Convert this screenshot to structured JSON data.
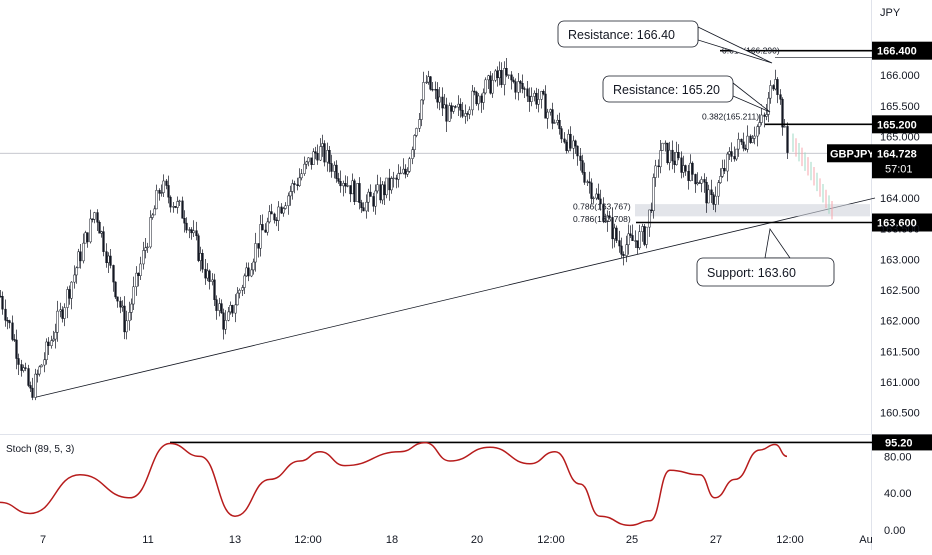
{
  "chart_data": [
    {
      "type": "candlestick",
      "symbol": "GBPJPY",
      "currency": "JPY",
      "last_price": "164.728",
      "countdown": "57:01",
      "y_ticks": [
        "166.000",
        "165.500",
        "165.000",
        "164.000",
        "163.500",
        "163.000",
        "162.500",
        "162.000",
        "161.500",
        "161.000",
        "160.500"
      ],
      "y_range": [
        160.3,
        166.9
      ],
      "x_ticks": [
        "7",
        "11",
        "13",
        "12:00",
        "18",
        "20",
        "12:00",
        "25",
        "27",
        "12:00",
        "Au"
      ],
      "approx_close_path": [
        {
          "x": 0,
          "close": 162.4
        },
        {
          "x": 30,
          "close": 160.8
        },
        {
          "x": 60,
          "close": 162.1
        },
        {
          "x": 95,
          "close": 163.8
        },
        {
          "x": 125,
          "close": 161.9
        },
        {
          "x": 160,
          "close": 164.2
        },
        {
          "x": 185,
          "close": 163.7
        },
        {
          "x": 225,
          "close": 161.9
        },
        {
          "x": 260,
          "close": 163.4
        },
        {
          "x": 318,
          "close": 164.8
        },
        {
          "x": 365,
          "close": 163.9
        },
        {
          "x": 405,
          "close": 164.4
        },
        {
          "x": 425,
          "close": 165.9
        },
        {
          "x": 450,
          "close": 165.3
        },
        {
          "x": 500,
          "close": 166.0
        },
        {
          "x": 540,
          "close": 165.6
        },
        {
          "x": 575,
          "close": 164.7
        },
        {
          "x": 620,
          "close": 163.2
        },
        {
          "x": 645,
          "close": 163.4
        },
        {
          "x": 660,
          "close": 164.8
        },
        {
          "x": 700,
          "close": 164.3
        },
        {
          "x": 710,
          "close": 163.9
        },
        {
          "x": 730,
          "close": 164.7
        },
        {
          "x": 765,
          "close": 165.3
        },
        {
          "x": 775,
          "close": 166.1
        },
        {
          "x": 787,
          "close": 164.7
        }
      ],
      "projection": [
        164.9,
        164.4,
        163.8
      ],
      "levels": [
        {
          "label": "166.400",
          "value": 166.4
        },
        {
          "label": "165.200",
          "value": 165.2
        },
        {
          "label": "163.600",
          "value": 163.6
        }
      ],
      "fib_labels": [
        {
          "text": "0.618(166.290)",
          "value": 166.29
        },
        {
          "text": "0.382(165.211)",
          "value": 165.211
        },
        {
          "text": "0.786(163.767)",
          "value": 163.767
        },
        {
          "text": "0.786(163.708)",
          "value": 163.708
        }
      ],
      "trendline": {
        "from": {
          "x": 35,
          "value": 160.75
        },
        "to": {
          "x": 875,
          "value": 164.0
        }
      },
      "support_zone": [
        163.7,
        163.9
      ],
      "callouts": [
        {
          "text": "Resistance: 166.40"
        },
        {
          "text": "Resistance: 165.20"
        },
        {
          "text": "Support: 163.60"
        }
      ]
    },
    {
      "type": "line",
      "indicator": "Stoch (89, 5, 3)",
      "y_ticks": [
        "80.00",
        "40.00",
        "0.00"
      ],
      "y_range": [
        0,
        100
      ],
      "level": {
        "label": "95.20",
        "value": 95.2
      },
      "approx_values": [
        {
          "x": 0,
          "value": 30
        },
        {
          "x": 30,
          "value": 18
        },
        {
          "x": 80,
          "value": 60
        },
        {
          "x": 130,
          "value": 35
        },
        {
          "x": 170,
          "value": 94
        },
        {
          "x": 200,
          "value": 80
        },
        {
          "x": 235,
          "value": 15
        },
        {
          "x": 270,
          "value": 55
        },
        {
          "x": 300,
          "value": 75
        },
        {
          "x": 320,
          "value": 85
        },
        {
          "x": 345,
          "value": 70
        },
        {
          "x": 400,
          "value": 85
        },
        {
          "x": 425,
          "value": 95
        },
        {
          "x": 450,
          "value": 75
        },
        {
          "x": 490,
          "value": 90
        },
        {
          "x": 530,
          "value": 72
        },
        {
          "x": 555,
          "value": 85
        },
        {
          "x": 580,
          "value": 50
        },
        {
          "x": 600,
          "value": 15
        },
        {
          "x": 630,
          "value": 5
        },
        {
          "x": 650,
          "value": 10
        },
        {
          "x": 670,
          "value": 65
        },
        {
          "x": 700,
          "value": 60
        },
        {
          "x": 715,
          "value": 35
        },
        {
          "x": 735,
          "value": 55
        },
        {
          "x": 760,
          "value": 87
        },
        {
          "x": 775,
          "value": 93
        },
        {
          "x": 787,
          "value": 80
        }
      ]
    }
  ]
}
